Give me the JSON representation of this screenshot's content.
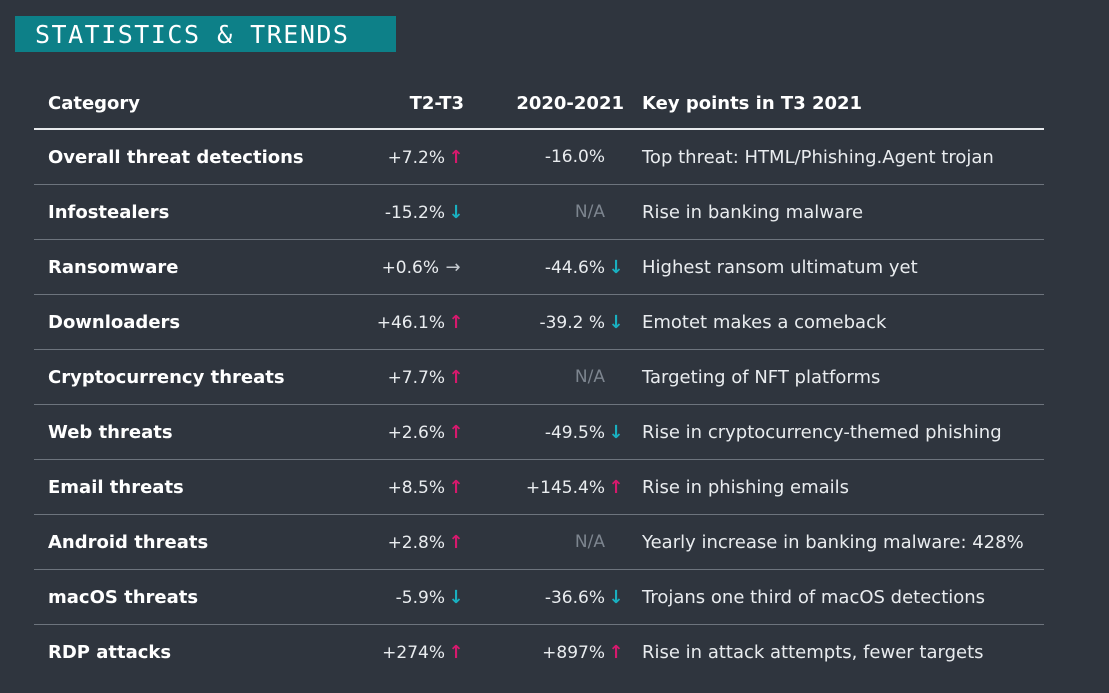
{
  "banner": {
    "title": "STATISTICS & TRENDS"
  },
  "colors": {
    "background": "#2f353e",
    "banner": "#0d8088",
    "up": "#d6196d",
    "down": "#19b0c0",
    "flat": "#c4c9cf",
    "na": "#7d858f"
  },
  "table": {
    "headers": [
      "Category",
      "T2-T3",
      "2020-2021",
      "Key points in T3 2021"
    ],
    "rows": [
      {
        "category": "Overall threat detections",
        "t2t3": "+7.2%",
        "t2t3_trend": "up",
        "t2t3_arrow": "↑",
        "yearly": "-16.0%",
        "yearly_trend": "none",
        "yearly_arrow": "",
        "key_point": "Top threat: HTML/Phishing.Agent trojan"
      },
      {
        "category": "Infostealers",
        "t2t3": "-15.2%",
        "t2t3_trend": "down",
        "t2t3_arrow": "↓",
        "yearly": "N/A",
        "yearly_trend": "na",
        "yearly_arrow": "",
        "key_point": "Rise in banking malware"
      },
      {
        "category": "Ransomware",
        "t2t3": "+0.6%",
        "t2t3_trend": "flat",
        "t2t3_arrow": "→",
        "yearly": "-44.6%",
        "yearly_trend": "down",
        "yearly_arrow": "↓",
        "key_point": "Highest ransom ultimatum yet"
      },
      {
        "category": "Downloaders",
        "t2t3": "+46.1%",
        "t2t3_trend": "up",
        "t2t3_arrow": "↑",
        "yearly": "-39.2 %",
        "yearly_trend": "down",
        "yearly_arrow": "↓",
        "key_point": "Emotet makes a comeback"
      },
      {
        "category": "Cryptocurrency threats",
        "t2t3": "+7.7%",
        "t2t3_trend": "up",
        "t2t3_arrow": "↑",
        "yearly": "N/A",
        "yearly_trend": "na",
        "yearly_arrow": "",
        "key_point": "Targeting of NFT platforms"
      },
      {
        "category": "Web threats",
        "t2t3": "+2.6%",
        "t2t3_trend": "up",
        "t2t3_arrow": "↑",
        "yearly": "-49.5%",
        "yearly_trend": "down",
        "yearly_arrow": "↓",
        "key_point": "Rise in cryptocurrency-themed phishing"
      },
      {
        "category": "Email threats",
        "t2t3": "+8.5%",
        "t2t3_trend": "up",
        "t2t3_arrow": "↑",
        "yearly": "+145.4%",
        "yearly_trend": "up",
        "yearly_arrow": "↑",
        "key_point": "Rise in phishing emails"
      },
      {
        "category": "Android threats",
        "t2t3": "+2.8%",
        "t2t3_trend": "up",
        "t2t3_arrow": "↑",
        "yearly": "N/A",
        "yearly_trend": "na",
        "yearly_arrow": "",
        "key_point": "Yearly increase in banking malware: 428%"
      },
      {
        "category": "macOS threats",
        "t2t3": "-5.9%",
        "t2t3_trend": "down",
        "t2t3_arrow": "↓",
        "yearly": "-36.6%",
        "yearly_trend": "down",
        "yearly_arrow": "↓",
        "key_point": "Trojans one third of macOS detections"
      },
      {
        "category": "RDP attacks",
        "t2t3": "+274%",
        "t2t3_trend": "up",
        "t2t3_arrow": "↑",
        "yearly": "+897%",
        "yearly_trend": "up",
        "yearly_arrow": "↑",
        "key_point": "Rise in attack attempts, fewer targets"
      }
    ]
  }
}
